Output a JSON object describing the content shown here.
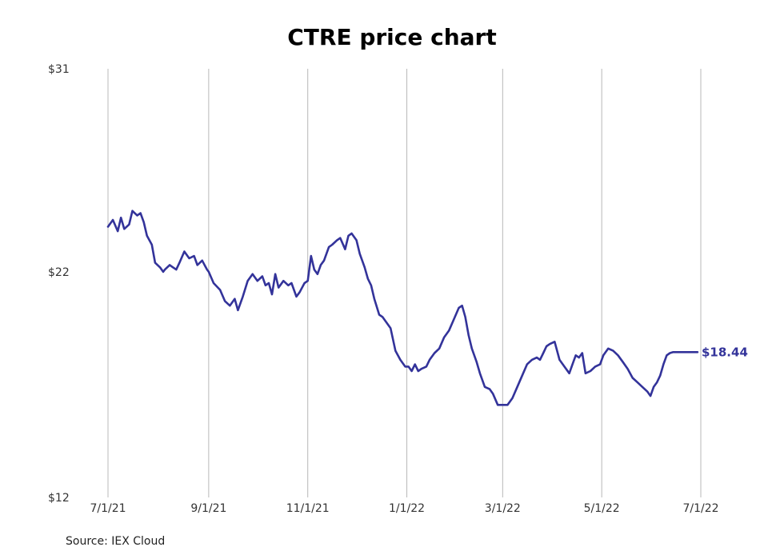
{
  "chart_data": {
    "type": "line",
    "title": "CTRE price chart",
    "ylim": [
      12,
      31
    ],
    "y_ticks": [
      12,
      22,
      31
    ],
    "y_tick_labels": [
      "$12",
      "$22",
      "$31"
    ],
    "x_ticks": [
      "2021-07-01",
      "2021-09-01",
      "2021-11-01",
      "2022-01-01",
      "2022-03-01",
      "2022-05-01",
      "2022-07-01"
    ],
    "x_tick_labels": [
      "7/1/21",
      "9/1/21",
      "11/1/21",
      "1/1/22",
      "3/1/22",
      "5/1/22",
      "7/1/22"
    ],
    "grid": "vertical",
    "line_color": "#33339a",
    "end_label": "$18.44",
    "series": [
      {
        "x": [
          "2021-07-01",
          "2021-07-04",
          "2021-07-07",
          "2021-07-09",
          "2021-07-11",
          "2021-07-14",
          "2021-07-16",
          "2021-07-19",
          "2021-07-21",
          "2021-07-23",
          "2021-07-25",
          "2021-07-28",
          "2021-07-30",
          "2021-08-02",
          "2021-08-04",
          "2021-08-05",
          "2021-08-08",
          "2021-08-10",
          "2021-08-12",
          "2021-08-14",
          "2021-08-17",
          "2021-08-20",
          "2021-08-23",
          "2021-08-25",
          "2021-08-28",
          "2021-08-31",
          "2021-09-01",
          "2021-09-04",
          "2021-09-08",
          "2021-09-11",
          "2021-09-14",
          "2021-09-17",
          "2021-09-19",
          "2021-09-22",
          "2021-09-25",
          "2021-09-28",
          "2021-10-01",
          "2021-10-04",
          "2021-10-06",
          "2021-10-08",
          "2021-10-10",
          "2021-10-12",
          "2021-10-14",
          "2021-10-17",
          "2021-10-20",
          "2021-10-22",
          "2021-10-25",
          "2021-10-27",
          "2021-10-30",
          "2021-11-01",
          "2021-11-03",
          "2021-11-05",
          "2021-11-07",
          "2021-11-09",
          "2021-11-11",
          "2021-11-14",
          "2021-11-16",
          "2021-11-19",
          "2021-11-21",
          "2021-11-24",
          "2021-11-26",
          "2021-11-28",
          "2021-12-01",
          "2021-12-03",
          "2021-12-06",
          "2021-12-08",
          "2021-12-10",
          "2021-12-12",
          "2021-12-15",
          "2021-12-17",
          "2021-12-19",
          "2021-12-22",
          "2021-12-25",
          "2021-12-28",
          "2021-12-31",
          "2022-01-02",
          "2022-01-04",
          "2022-01-06",
          "2022-01-08",
          "2022-01-10",
          "2022-01-13",
          "2022-01-15",
          "2022-01-18",
          "2022-01-21",
          "2022-01-24",
          "2022-01-27",
          "2022-01-30",
          "2022-02-02",
          "2022-02-04",
          "2022-02-06",
          "2022-02-08",
          "2022-02-10",
          "2022-02-13",
          "2022-02-15",
          "2022-02-18",
          "2022-02-21",
          "2022-02-23",
          "2022-02-26",
          "2022-03-01",
          "2022-03-04",
          "2022-03-07",
          "2022-03-10",
          "2022-03-13",
          "2022-03-16",
          "2022-03-19",
          "2022-03-22",
          "2022-03-24",
          "2022-03-26",
          "2022-03-28",
          "2022-03-30",
          "2022-04-02",
          "2022-04-05",
          "2022-04-08",
          "2022-04-11",
          "2022-04-13",
          "2022-04-15",
          "2022-04-17",
          "2022-04-19",
          "2022-04-21",
          "2022-04-24",
          "2022-04-27",
          "2022-04-30",
          "2022-05-02",
          "2022-05-05",
          "2022-05-08",
          "2022-05-11",
          "2022-05-14",
          "2022-05-17",
          "2022-05-20",
          "2022-05-23",
          "2022-05-26",
          "2022-05-29",
          "2022-05-31",
          "2022-06-02",
          "2022-06-04",
          "2022-06-06",
          "2022-06-08",
          "2022-06-10",
          "2022-06-12",
          "2022-06-14",
          "2022-06-17",
          "2022-06-20",
          "2022-06-23",
          "2022-06-26",
          "2022-06-29"
        ],
        "y": [
          24.0,
          24.3,
          23.8,
          24.4,
          23.9,
          24.1,
          24.7,
          24.5,
          24.6,
          24.2,
          23.6,
          23.2,
          22.4,
          22.2,
          22.0,
          22.1,
          22.3,
          22.2,
          22.1,
          22.4,
          22.9,
          22.6,
          22.7,
          22.3,
          22.5,
          22.1,
          22.0,
          21.5,
          21.2,
          20.7,
          20.5,
          20.8,
          20.3,
          20.9,
          21.6,
          21.9,
          21.6,
          21.8,
          21.4,
          21.5,
          21.0,
          21.9,
          21.3,
          21.6,
          21.4,
          21.5,
          20.9,
          21.1,
          21.5,
          21.6,
          22.7,
          22.1,
          21.9,
          22.3,
          22.5,
          23.1,
          23.2,
          23.4,
          23.5,
          23.0,
          23.6,
          23.7,
          23.4,
          22.8,
          22.2,
          21.7,
          21.4,
          20.8,
          20.1,
          20.0,
          19.8,
          19.5,
          18.5,
          18.1,
          17.8,
          17.8,
          17.6,
          17.9,
          17.6,
          17.7,
          17.8,
          18.1,
          18.4,
          18.6,
          19.1,
          19.4,
          19.9,
          20.4,
          20.5,
          20.0,
          19.2,
          18.6,
          18.0,
          17.5,
          16.9,
          16.8,
          16.6,
          16.1,
          16.1,
          16.1,
          16.4,
          16.9,
          17.4,
          17.9,
          18.1,
          18.2,
          18.1,
          18.4,
          18.7,
          18.8,
          18.9,
          18.1,
          17.8,
          17.5,
          17.9,
          18.3,
          18.2,
          18.4,
          17.5,
          17.6,
          17.8,
          17.9,
          18.3,
          18.6,
          18.5,
          18.3,
          18.0,
          17.7,
          17.3,
          17.1,
          16.9,
          16.7,
          16.5,
          16.9,
          17.1,
          17.4,
          17.9,
          18.3,
          18.4,
          18.44,
          18.44,
          18.44,
          18.44,
          18.44,
          18.44
        ]
      }
    ]
  },
  "footer": {
    "source": "Source: IEX Cloud"
  }
}
